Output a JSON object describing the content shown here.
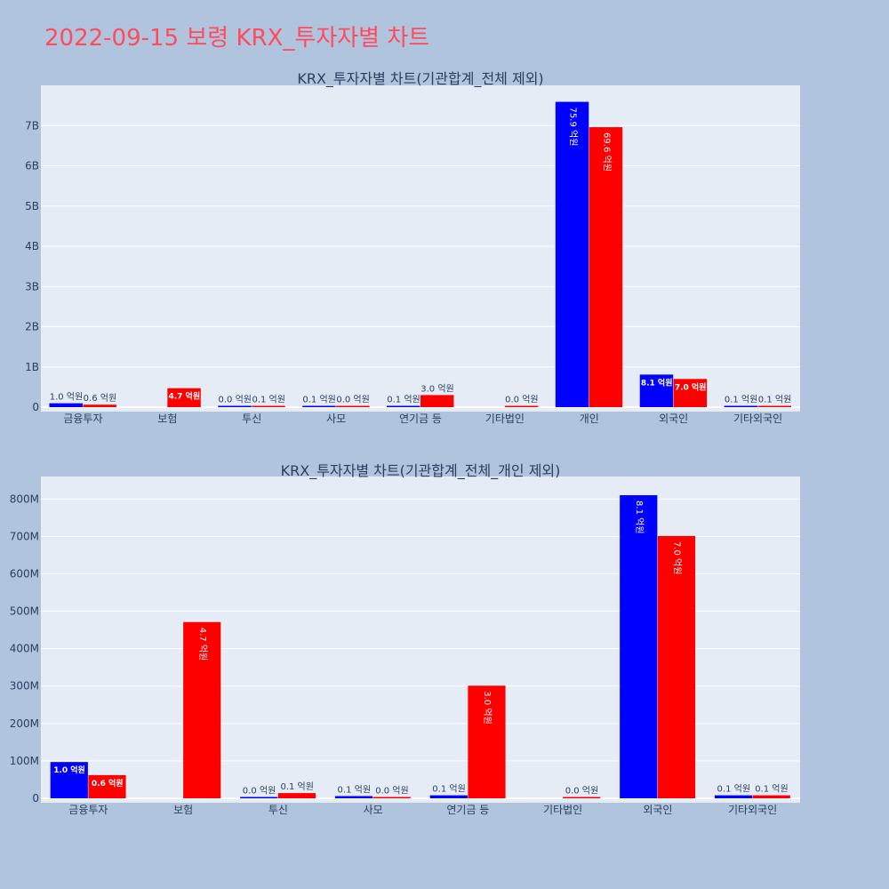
{
  "title": "2022-09-15 보령 KRX_투자자별 차트",
  "colors": {
    "buy": "#0000ff",
    "sell": "#ff0000",
    "plot_bg": "#e5ecf6",
    "page_bg": "#b0c4de",
    "title": "#ff4b5c"
  },
  "chart_data": [
    {
      "type": "bar",
      "title": "KRX_투자자별 차트(기관합계_전체 제외)",
      "categories": [
        "금융투자",
        "보험",
        "투신",
        "사모",
        "연기금 등",
        "기타법인",
        "개인",
        "외국인",
        "기타외국인"
      ],
      "series": [
        {
          "values": [
            97000000,
            0,
            1000000,
            6000000,
            8000000,
            0,
            7590000000,
            810000000,
            8000000
          ],
          "labels": [
            "1.0 억원",
            "",
            "0.0 억원",
            "0.1 억원",
            "0.1 억원",
            "",
            "75.9 억원",
            "8.1 억원",
            "0.1 억원"
          ],
          "color": "#0000ff"
        },
        {
          "values": [
            62000000,
            471000000,
            14000000,
            2000000,
            301000000,
            2000000,
            6960000000,
            701000000,
            8000000
          ],
          "labels": [
            "0.6 억원",
            "4.7 억원",
            "0.1 억원",
            "0.0 억원",
            "3.0 억원",
            "0.0 억원",
            "69.6 억원",
            "7.0 억원",
            "0.1 억원"
          ],
          "color": "#ff0000"
        }
      ],
      "ylim": [
        0,
        8000000000
      ],
      "yticks": [
        0,
        1000000000,
        2000000000,
        3000000000,
        4000000000,
        5000000000,
        6000000000,
        7000000000
      ],
      "ytick_labels": [
        "0",
        "1B",
        "2B",
        "3B",
        "4B",
        "5B",
        "6B",
        "7B"
      ],
      "grid": true
    },
    {
      "type": "bar",
      "title": "KRX_투자자별 차트(기관합계_전체_개인 제외)",
      "categories": [
        "금융투자",
        "보험",
        "투신",
        "사모",
        "연기금 등",
        "기타법인",
        "외국인",
        "기타외국인"
      ],
      "series": [
        {
          "values": [
            97000000,
            0,
            1000000,
            6000000,
            8000000,
            0,
            810000000,
            8000000
          ],
          "labels": [
            "1.0 억원",
            "",
            "0.0 억원",
            "0.1 억원",
            "0.1 억원",
            "",
            "8.1 억원",
            "0.1 억원"
          ],
          "color": "#0000ff"
        },
        {
          "values": [
            62000000,
            471000000,
            14000000,
            2000000,
            301000000,
            2000000,
            701000000,
            8000000
          ],
          "labels": [
            "0.6 억원",
            "4.7 억원",
            "0.1 억원",
            "0.0 억원",
            "3.0 억원",
            "0.0 억원",
            "7.0 억원",
            "0.1 억원"
          ],
          "color": "#ff0000"
        }
      ],
      "ylim": [
        0,
        860000000
      ],
      "yticks": [
        0,
        100000000,
        200000000,
        300000000,
        400000000,
        500000000,
        600000000,
        700000000,
        800000000
      ],
      "ytick_labels": [
        "0",
        "100M",
        "200M",
        "300M",
        "400M",
        "500M",
        "600M",
        "700M",
        "800M"
      ],
      "grid": true
    }
  ]
}
